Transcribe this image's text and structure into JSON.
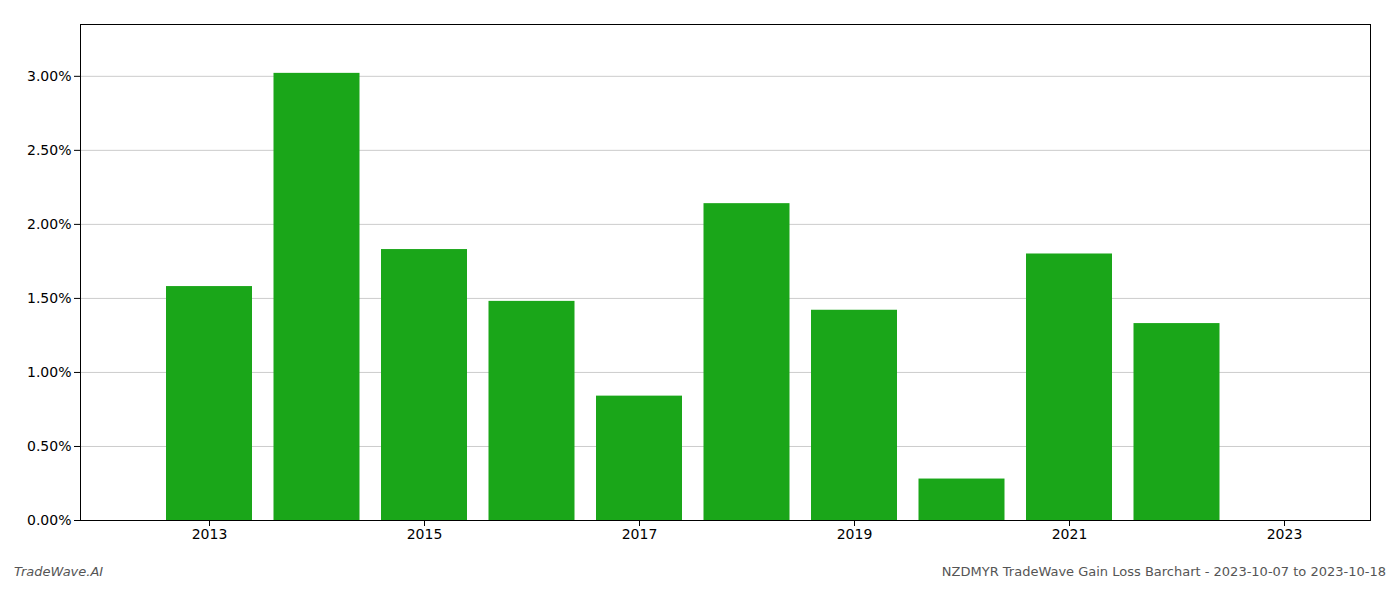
{
  "chart_data": {
    "type": "bar",
    "x": [
      2013,
      2014,
      2015,
      2016,
      2017,
      2018,
      2019,
      2020,
      2021,
      2022
    ],
    "values": [
      0.0158,
      0.0302,
      0.0183,
      0.0148,
      0.0084,
      0.0214,
      0.0142,
      0.0028,
      0.018,
      0.0133
    ],
    "color": "#1aa619",
    "xlim": [
      2011.8,
      2023.8
    ],
    "xticks": [
      2013,
      2015,
      2017,
      2019,
      2021,
      2023
    ],
    "ylim": [
      0,
      0.0335
    ],
    "yticks": [
      {
        "value": 0.0,
        "label": "0.00%"
      },
      {
        "value": 0.005,
        "label": "0.50%"
      },
      {
        "value": 0.01,
        "label": "1.00%"
      },
      {
        "value": 0.015,
        "label": "1.50%"
      },
      {
        "value": 0.02,
        "label": "2.00%"
      },
      {
        "value": 0.025,
        "label": "2.50%"
      },
      {
        "value": 0.03,
        "label": "3.00%"
      }
    ],
    "grid": true,
    "annotations": [
      "TradeWave.AI",
      "NZDMYR TradeWave Gain Loss Barchart - 2023-10-07 to 2023-10-18"
    ]
  }
}
